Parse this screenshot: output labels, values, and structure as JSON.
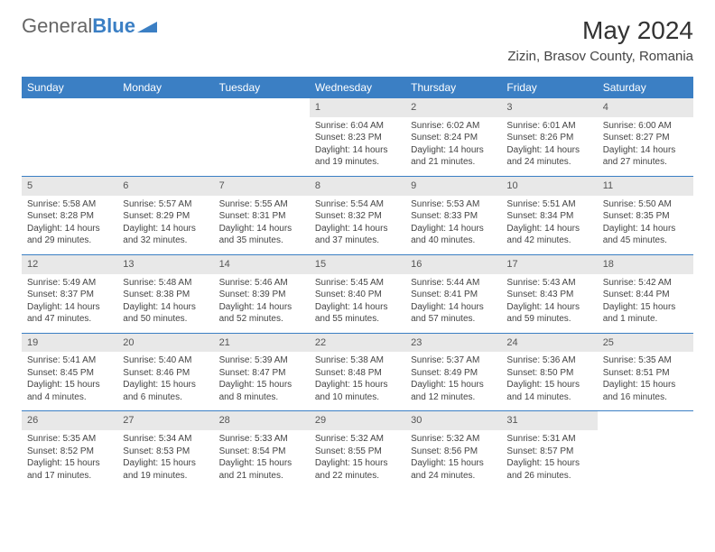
{
  "brand": {
    "part1": "General",
    "part2": "Blue"
  },
  "title": "May 2024",
  "location": "Zizin, Brasov County, Romania",
  "colors": {
    "header_bg": "#3b7fc4",
    "header_text": "#ffffff",
    "daynum_bg": "#e8e8e8",
    "body_text": "#444444",
    "page_bg": "#ffffff"
  },
  "weekdays": [
    "Sunday",
    "Monday",
    "Tuesday",
    "Wednesday",
    "Thursday",
    "Friday",
    "Saturday"
  ],
  "weeks": [
    [
      null,
      null,
      null,
      {
        "n": "1",
        "sr": "6:04 AM",
        "ss": "8:23 PM",
        "dl": "14 hours and 19 minutes."
      },
      {
        "n": "2",
        "sr": "6:02 AM",
        "ss": "8:24 PM",
        "dl": "14 hours and 21 minutes."
      },
      {
        "n": "3",
        "sr": "6:01 AM",
        "ss": "8:26 PM",
        "dl": "14 hours and 24 minutes."
      },
      {
        "n": "4",
        "sr": "6:00 AM",
        "ss": "8:27 PM",
        "dl": "14 hours and 27 minutes."
      }
    ],
    [
      {
        "n": "5",
        "sr": "5:58 AM",
        "ss": "8:28 PM",
        "dl": "14 hours and 29 minutes."
      },
      {
        "n": "6",
        "sr": "5:57 AM",
        "ss": "8:29 PM",
        "dl": "14 hours and 32 minutes."
      },
      {
        "n": "7",
        "sr": "5:55 AM",
        "ss": "8:31 PM",
        "dl": "14 hours and 35 minutes."
      },
      {
        "n": "8",
        "sr": "5:54 AM",
        "ss": "8:32 PM",
        "dl": "14 hours and 37 minutes."
      },
      {
        "n": "9",
        "sr": "5:53 AM",
        "ss": "8:33 PM",
        "dl": "14 hours and 40 minutes."
      },
      {
        "n": "10",
        "sr": "5:51 AM",
        "ss": "8:34 PM",
        "dl": "14 hours and 42 minutes."
      },
      {
        "n": "11",
        "sr": "5:50 AM",
        "ss": "8:35 PM",
        "dl": "14 hours and 45 minutes."
      }
    ],
    [
      {
        "n": "12",
        "sr": "5:49 AM",
        "ss": "8:37 PM",
        "dl": "14 hours and 47 minutes."
      },
      {
        "n": "13",
        "sr": "5:48 AM",
        "ss": "8:38 PM",
        "dl": "14 hours and 50 minutes."
      },
      {
        "n": "14",
        "sr": "5:46 AM",
        "ss": "8:39 PM",
        "dl": "14 hours and 52 minutes."
      },
      {
        "n": "15",
        "sr": "5:45 AM",
        "ss": "8:40 PM",
        "dl": "14 hours and 55 minutes."
      },
      {
        "n": "16",
        "sr": "5:44 AM",
        "ss": "8:41 PM",
        "dl": "14 hours and 57 minutes."
      },
      {
        "n": "17",
        "sr": "5:43 AM",
        "ss": "8:43 PM",
        "dl": "14 hours and 59 minutes."
      },
      {
        "n": "18",
        "sr": "5:42 AM",
        "ss": "8:44 PM",
        "dl": "15 hours and 1 minute."
      }
    ],
    [
      {
        "n": "19",
        "sr": "5:41 AM",
        "ss": "8:45 PM",
        "dl": "15 hours and 4 minutes."
      },
      {
        "n": "20",
        "sr": "5:40 AM",
        "ss": "8:46 PM",
        "dl": "15 hours and 6 minutes."
      },
      {
        "n": "21",
        "sr": "5:39 AM",
        "ss": "8:47 PM",
        "dl": "15 hours and 8 minutes."
      },
      {
        "n": "22",
        "sr": "5:38 AM",
        "ss": "8:48 PM",
        "dl": "15 hours and 10 minutes."
      },
      {
        "n": "23",
        "sr": "5:37 AM",
        "ss": "8:49 PM",
        "dl": "15 hours and 12 minutes."
      },
      {
        "n": "24",
        "sr": "5:36 AM",
        "ss": "8:50 PM",
        "dl": "15 hours and 14 minutes."
      },
      {
        "n": "25",
        "sr": "5:35 AM",
        "ss": "8:51 PM",
        "dl": "15 hours and 16 minutes."
      }
    ],
    [
      {
        "n": "26",
        "sr": "5:35 AM",
        "ss": "8:52 PM",
        "dl": "15 hours and 17 minutes."
      },
      {
        "n": "27",
        "sr": "5:34 AM",
        "ss": "8:53 PM",
        "dl": "15 hours and 19 minutes."
      },
      {
        "n": "28",
        "sr": "5:33 AM",
        "ss": "8:54 PM",
        "dl": "15 hours and 21 minutes."
      },
      {
        "n": "29",
        "sr": "5:32 AM",
        "ss": "8:55 PM",
        "dl": "15 hours and 22 minutes."
      },
      {
        "n": "30",
        "sr": "5:32 AM",
        "ss": "8:56 PM",
        "dl": "15 hours and 24 minutes."
      },
      {
        "n": "31",
        "sr": "5:31 AM",
        "ss": "8:57 PM",
        "dl": "15 hours and 26 minutes."
      },
      null
    ]
  ],
  "labels": {
    "sunrise": "Sunrise: ",
    "sunset": "Sunset: ",
    "daylight": "Daylight: "
  }
}
